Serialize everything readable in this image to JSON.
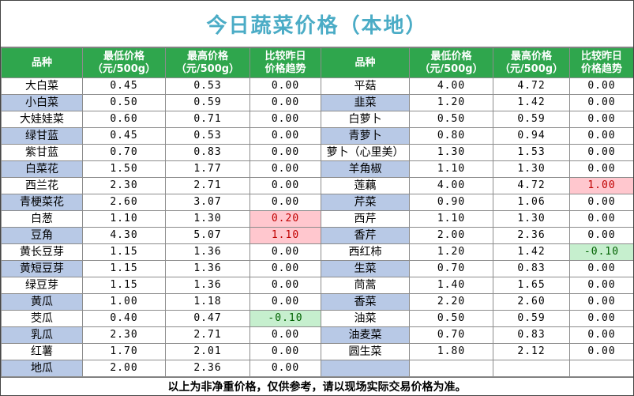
{
  "title": "今日蔬菜价格（本地）",
  "headers": {
    "variety": "品种",
    "min_price": [
      "最低价格",
      "（元/500g）"
    ],
    "max_price": [
      "最高价格",
      "（元/500g）"
    ],
    "trend": [
      "比较昨日",
      "价格趋势"
    ]
  },
  "left_rows": [
    {
      "name": "大白菜",
      "min": "0.45",
      "max": "0.53",
      "trend": "0.00",
      "trend_dir": "flat"
    },
    {
      "name": "小白菜",
      "min": "0.50",
      "max": "0.59",
      "trend": "0.00",
      "trend_dir": "flat"
    },
    {
      "name": "大娃娃菜",
      "min": "0.60",
      "max": "0.71",
      "trend": "0.00",
      "trend_dir": "flat"
    },
    {
      "name": "绿甘蓝",
      "min": "0.45",
      "max": "0.53",
      "trend": "0.00",
      "trend_dir": "flat"
    },
    {
      "name": "紫甘蓝",
      "min": "0.70",
      "max": "0.83",
      "trend": "0.00",
      "trend_dir": "flat"
    },
    {
      "name": "白菜花",
      "min": "1.50",
      "max": "1.77",
      "trend": "0.00",
      "trend_dir": "flat"
    },
    {
      "name": "西兰花",
      "min": "2.30",
      "max": "2.71",
      "trend": "0.00",
      "trend_dir": "flat"
    },
    {
      "name": "青梗菜花",
      "min": "2.60",
      "max": "3.07",
      "trend": "0.00",
      "trend_dir": "flat"
    },
    {
      "name": "白葱",
      "min": "1.10",
      "max": "1.30",
      "trend": "0.20",
      "trend_dir": "up"
    },
    {
      "name": "豆角",
      "min": "4.30",
      "max": "5.07",
      "trend": "1.10",
      "trend_dir": "up"
    },
    {
      "name": "黄长豆芽",
      "min": "1.15",
      "max": "1.36",
      "trend": "0.00",
      "trend_dir": "flat"
    },
    {
      "name": "黄短豆芽",
      "min": "1.15",
      "max": "1.36",
      "trend": "0.00",
      "trend_dir": "flat"
    },
    {
      "name": "绿豆芽",
      "min": "1.15",
      "max": "1.36",
      "trend": "0.00",
      "trend_dir": "flat"
    },
    {
      "name": "黄瓜",
      "min": "1.00",
      "max": "1.18",
      "trend": "0.00",
      "trend_dir": "flat"
    },
    {
      "name": "茭瓜",
      "min": "0.40",
      "max": "0.47",
      "trend": "-0.10",
      "trend_dir": "down"
    },
    {
      "name": "乳瓜",
      "min": "2.30",
      "max": "2.71",
      "trend": "0.00",
      "trend_dir": "flat"
    },
    {
      "name": "红薯",
      "min": "1.70",
      "max": "2.01",
      "trend": "0.00",
      "trend_dir": "flat"
    },
    {
      "name": "地瓜",
      "min": "2.00",
      "max": "2.36",
      "trend": "0.00",
      "trend_dir": "flat"
    }
  ],
  "right_rows": [
    {
      "name": "平菇",
      "min": "4.00",
      "max": "4.72",
      "trend": "0.00",
      "trend_dir": "flat"
    },
    {
      "name": "韭菜",
      "min": "1.20",
      "max": "1.42",
      "trend": "0.00",
      "trend_dir": "flat"
    },
    {
      "name": "白萝卜",
      "min": "0.50",
      "max": "0.59",
      "trend": "0.00",
      "trend_dir": "flat"
    },
    {
      "name": "青萝卜",
      "min": "0.80",
      "max": "0.94",
      "trend": "0.00",
      "trend_dir": "flat"
    },
    {
      "name": "萝卜（心里美）",
      "min": "1.30",
      "max": "1.53",
      "trend": "0.00",
      "trend_dir": "flat"
    },
    {
      "name": "羊角椒",
      "min": "1.10",
      "max": "1.30",
      "trend": "0.00",
      "trend_dir": "flat"
    },
    {
      "name": "莲藕",
      "min": "4.00",
      "max": "4.72",
      "trend": "1.00",
      "trend_dir": "up"
    },
    {
      "name": "芹菜",
      "min": "0.90",
      "max": "1.06",
      "trend": "0.00",
      "trend_dir": "flat"
    },
    {
      "name": "西芹",
      "min": "1.10",
      "max": "1.30",
      "trend": "0.00",
      "trend_dir": "flat"
    },
    {
      "name": "香芹",
      "min": "2.00",
      "max": "2.36",
      "trend": "0.00",
      "trend_dir": "flat"
    },
    {
      "name": "西红柿",
      "min": "1.20",
      "max": "1.42",
      "trend": "-0.10",
      "trend_dir": "down"
    },
    {
      "name": "生菜",
      "min": "0.70",
      "max": "0.83",
      "trend": "0.00",
      "trend_dir": "flat"
    },
    {
      "name": "茼蒿",
      "min": "1.40",
      "max": "1.65",
      "trend": "0.00",
      "trend_dir": "flat"
    },
    {
      "name": "香菜",
      "min": "2.20",
      "max": "2.60",
      "trend": "0.00",
      "trend_dir": "flat"
    },
    {
      "name": "油菜",
      "min": "0.50",
      "max": "0.59",
      "trend": "0.00",
      "trend_dir": "flat"
    },
    {
      "name": "油麦菜",
      "min": "0.70",
      "max": "0.83",
      "trend": "0.00",
      "trend_dir": "flat"
    },
    {
      "name": "圆生菜",
      "min": "1.80",
      "max": "2.12",
      "trend": "0.00",
      "trend_dir": "flat"
    },
    {
      "name": "",
      "min": "",
      "max": "",
      "trend": "",
      "trend_dir": "flat"
    }
  ],
  "footer": "以上为非净重价格，仅供参考，请以现场实际交易价格为准。",
  "colors": {
    "title": "#4bacc6",
    "header_bg": "#2fa64d",
    "alt_row_name_bg": "#b8c9e6",
    "up_bg": "#ffc7ce",
    "down_bg": "#c6efce"
  }
}
